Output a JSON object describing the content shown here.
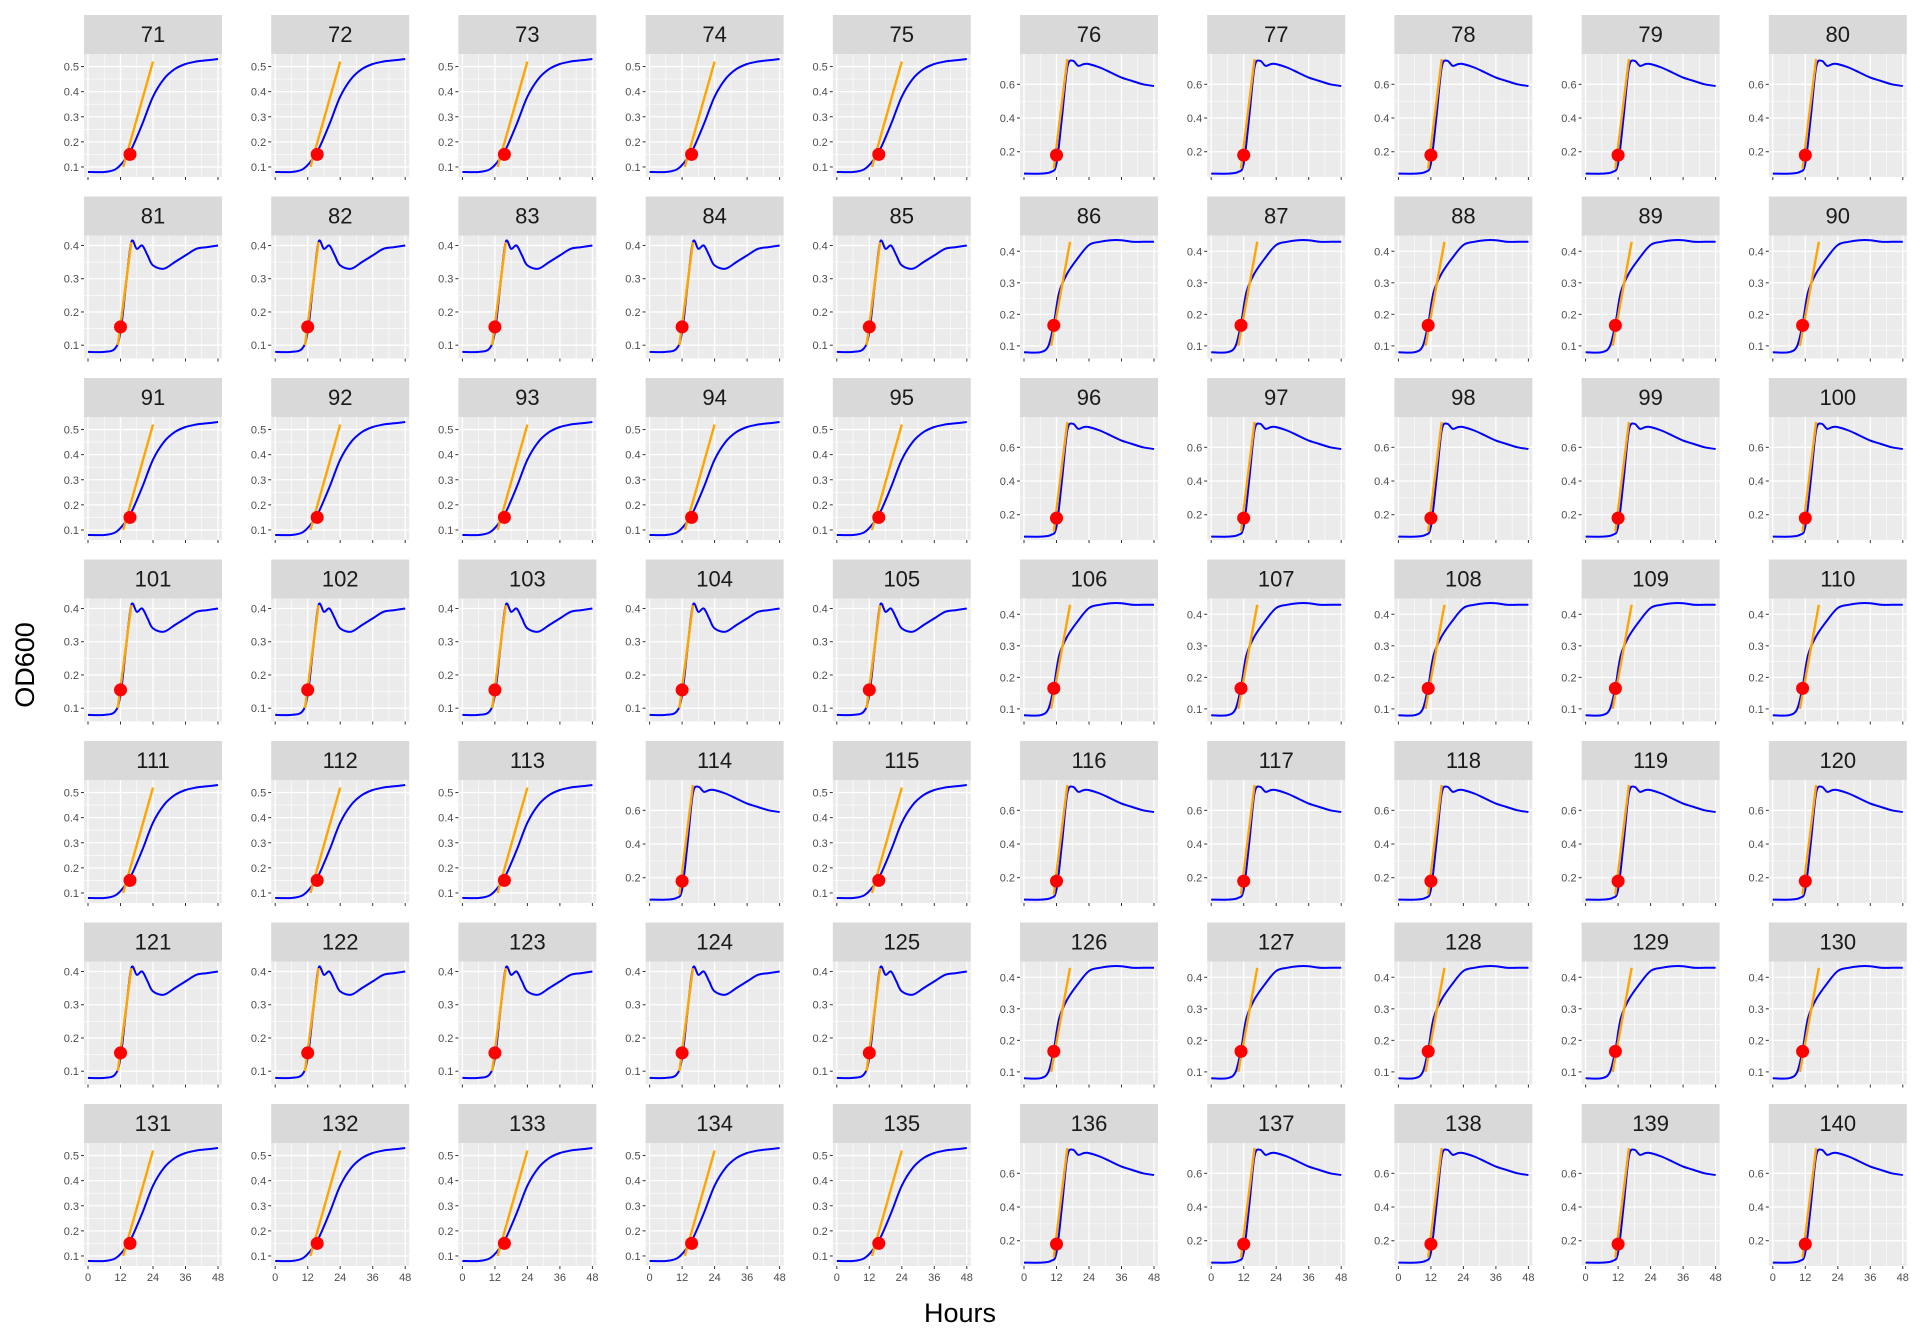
{
  "chart_data": {
    "type": "line",
    "layout": "facet-grid",
    "xlabel": "Hours",
    "ylabel": "OD600",
    "xlim": [
      0,
      48
    ],
    "x_ticks": [
      0,
      12,
      24,
      36,
      48
    ],
    "grid": true,
    "legend": "none",
    "colors": {
      "panel_bg": "#ebebeb",
      "grid_major": "#ffffff",
      "strip_bg": "#d9d9d9",
      "curve": "#0000ff",
      "tangent": "#ffa500",
      "point": "#ff0000"
    },
    "group_profiles": {
      "A": {
        "family": "sigmoid",
        "ylim": [
          0.06,
          0.55
        ],
        "yticks": [
          0.1,
          0.2,
          0.3,
          0.4,
          0.5
        ],
        "ytick_labels": [
          "0.1",
          "0.2",
          "0.3",
          "0.4",
          "0.5"
        ],
        "x": [
          0,
          6,
          10,
          13,
          16,
          20,
          24,
          28,
          32,
          36,
          40,
          44,
          48
        ],
        "y": [
          0.08,
          0.08,
          0.09,
          0.12,
          0.17,
          0.27,
          0.38,
          0.45,
          0.49,
          0.51,
          0.52,
          0.525,
          0.53
        ],
        "point": {
          "x": 15.5,
          "y": 0.15
        },
        "tangent": [
          [
            13,
            0.1
          ],
          [
            24,
            0.52
          ]
        ]
      },
      "B": {
        "family": "overshoot",
        "ylim": [
          0.05,
          0.78
        ],
        "yticks": [
          0.2,
          0.4,
          0.6
        ],
        "ytick_labels": [
          "0.2",
          "0.4",
          "0.6"
        ],
        "x": [
          0,
          6,
          10,
          12,
          14,
          16,
          18,
          20,
          22,
          24,
          28,
          32,
          36,
          40,
          44,
          48
        ],
        "y": [
          0.07,
          0.07,
          0.08,
          0.13,
          0.4,
          0.7,
          0.74,
          0.71,
          0.72,
          0.72,
          0.7,
          0.67,
          0.64,
          0.62,
          0.6,
          0.59
        ],
        "point": {
          "x": 12,
          "y": 0.18
        },
        "tangent": [
          [
            11,
            0.1
          ],
          [
            16,
            0.75
          ]
        ]
      },
      "C": {
        "family": "dip",
        "ylim": [
          0.06,
          0.43
        ],
        "yticks": [
          0.1,
          0.2,
          0.3,
          0.4
        ],
        "ytick_labels": [
          "0.1",
          "0.2",
          "0.3",
          "0.4"
        ],
        "x": [
          0,
          6,
          10,
          12,
          14,
          16,
          18,
          20,
          22,
          24,
          28,
          32,
          36,
          40,
          44,
          48
        ],
        "y": [
          0.08,
          0.08,
          0.09,
          0.14,
          0.28,
          0.41,
          0.39,
          0.4,
          0.37,
          0.34,
          0.33,
          0.35,
          0.37,
          0.39,
          0.395,
          0.4
        ],
        "point": {
          "x": 12,
          "y": 0.155
        },
        "tangent": [
          [
            11,
            0.1
          ],
          [
            16,
            0.41
          ]
        ]
      },
      "D": {
        "family": "plateau",
        "ylim": [
          0.06,
          0.45
        ],
        "yticks": [
          0.1,
          0.2,
          0.3,
          0.4
        ],
        "ytick_labels": [
          "0.1",
          "0.2",
          "0.3",
          "0.4"
        ],
        "x": [
          0,
          6,
          9,
          11,
          13,
          16,
          20,
          24,
          28,
          32,
          36,
          40,
          44,
          48
        ],
        "y": [
          0.08,
          0.08,
          0.1,
          0.17,
          0.27,
          0.33,
          0.38,
          0.42,
          0.43,
          0.435,
          0.435,
          0.43,
          0.43,
          0.43
        ],
        "point": {
          "x": 11,
          "y": 0.165
        },
        "tangent": [
          [
            10,
            0.1
          ],
          [
            17,
            0.43
          ]
        ]
      }
    },
    "panel_groups": [
      [
        "A",
        "A",
        "A",
        "A",
        "A",
        "B",
        "B",
        "B",
        "B",
        "B"
      ],
      [
        "C",
        "C",
        "C",
        "C",
        "C",
        "D",
        "D",
        "D",
        "D",
        "D"
      ],
      [
        "A",
        "A",
        "A",
        "A",
        "A",
        "B",
        "B",
        "B",
        "B",
        "B"
      ],
      [
        "C",
        "C",
        "C",
        "C",
        "C",
        "D",
        "D",
        "D",
        "D",
        "D"
      ],
      [
        "A",
        "A",
        "A",
        "B",
        "A",
        "B",
        "B",
        "B",
        "B",
        "B"
      ],
      [
        "C",
        "C",
        "C",
        "C",
        "C",
        "D",
        "D",
        "D",
        "D",
        "D"
      ],
      [
        "A",
        "A",
        "A",
        "A",
        "A",
        "B",
        "B",
        "B",
        "B",
        "B"
      ]
    ],
    "panels": [
      "71",
      "72",
      "73",
      "74",
      "75",
      "76",
      "77",
      "78",
      "79",
      "80",
      "81",
      "82",
      "83",
      "84",
      "85",
      "86",
      "87",
      "88",
      "89",
      "90",
      "91",
      "92",
      "93",
      "94",
      "95",
      "96",
      "97",
      "98",
      "99",
      "100",
      "101",
      "102",
      "103",
      "104",
      "105",
      "106",
      "107",
      "108",
      "109",
      "110",
      "111",
      "112",
      "113",
      "114",
      "115",
      "116",
      "117",
      "118",
      "119",
      "120",
      "121",
      "122",
      "123",
      "124",
      "125",
      "126",
      "127",
      "128",
      "129",
      "130",
      "131",
      "132",
      "133",
      "134",
      "135",
      "136",
      "137",
      "138",
      "139",
      "140"
    ]
  }
}
